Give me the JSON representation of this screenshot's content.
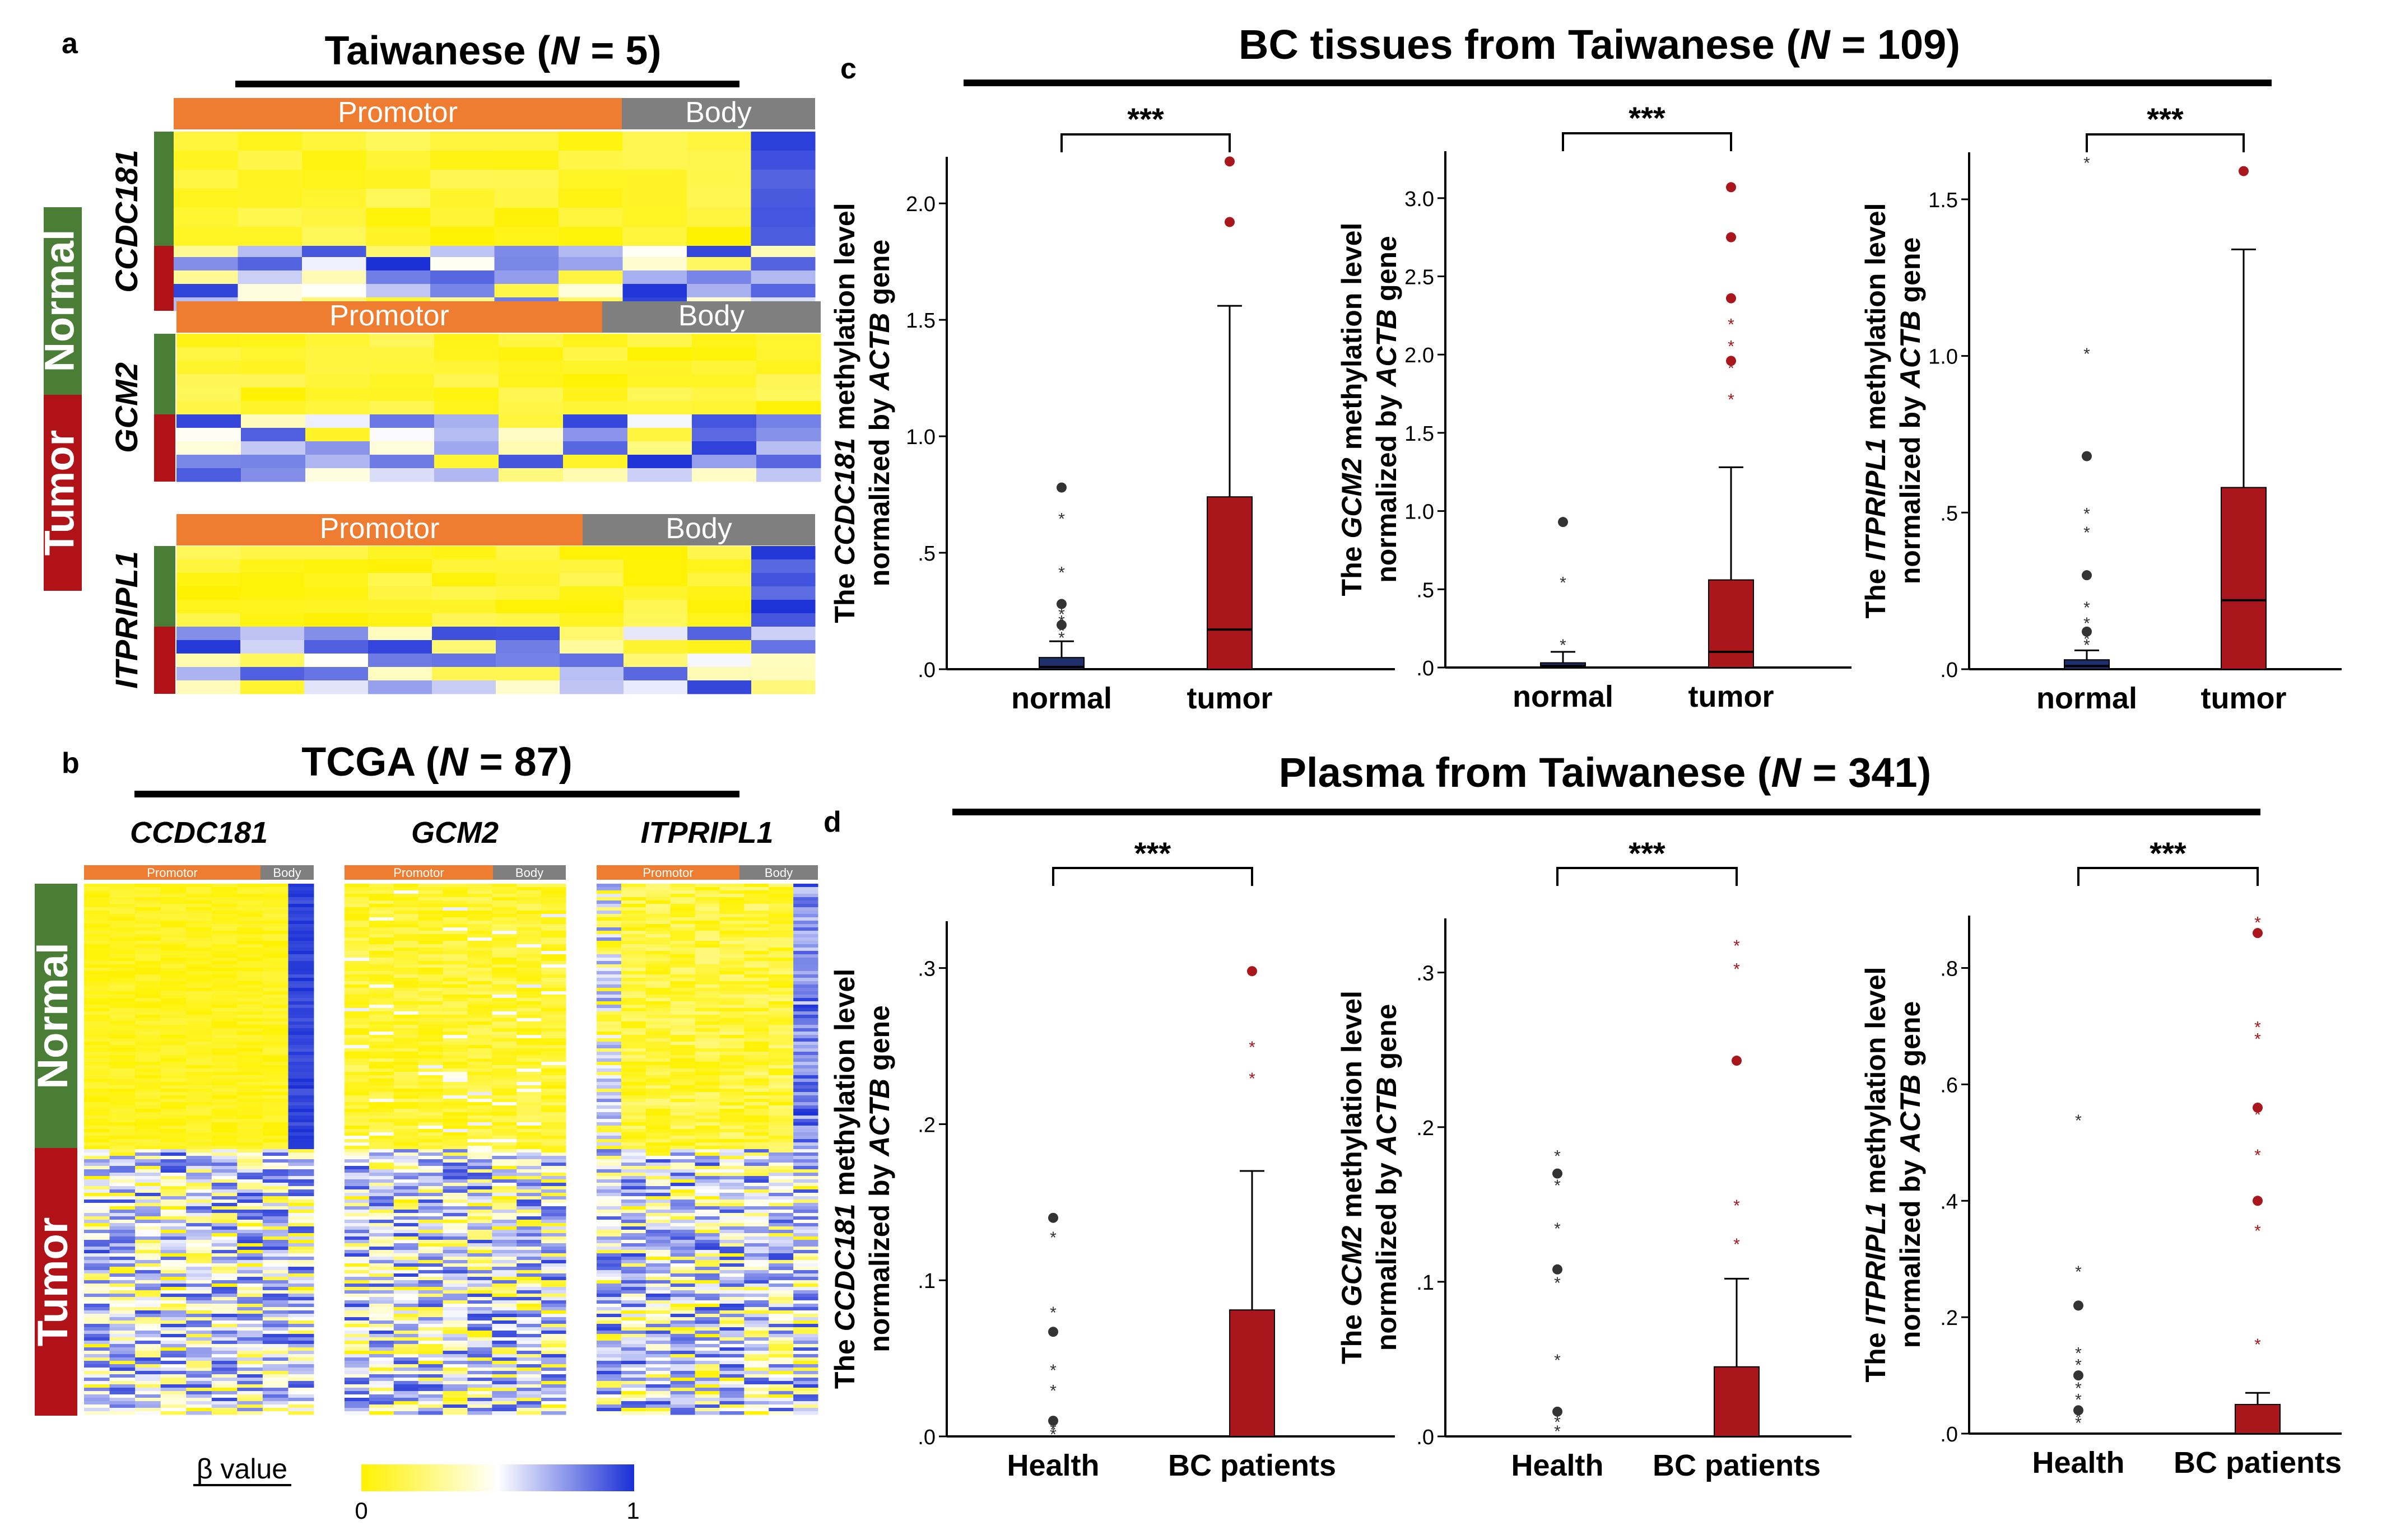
{
  "panels": {
    "a": {
      "letter": "a",
      "title_pre": "Taiwanese (",
      "title_n": "N",
      "title_post": " = 5)",
      "groups": {
        "normal": "Normal",
        "tumor": "Tumor"
      },
      "region_labels": {
        "promotor": "Promotor",
        "body": "Body"
      },
      "genes": [
        "CCDC181",
        "GCM2",
        "ITPRIPL1"
      ]
    },
    "b": {
      "letter": "b",
      "title_pre": "TCGA (",
      "title_n": "N",
      "title_post": " = 87)",
      "groups": {
        "normal": "Normal",
        "tumor": "Tumor"
      },
      "region_labels": {
        "promotor": "Promotor",
        "body": "Body"
      },
      "genes": [
        "CCDC181",
        "GCM2",
        "ITPRIPL1"
      ],
      "colorbar": {
        "label": "β value",
        "min_label": "0",
        "max_label": "1"
      }
    },
    "c": {
      "letter": "c",
      "title_pre": "BC tissues from Taiwanese (",
      "title_n": "N",
      "title_post": " = 109)"
    },
    "d": {
      "letter": "d",
      "title_pre": "Plasma from Taiwanese (",
      "title_n": "N",
      "title_post": " = 341)"
    }
  },
  "colors": {
    "orange": "#ef7d31",
    "gray": "#7f7f7f",
    "green": "#4a7d36",
    "red": "#b01218",
    "yellow": "#fff200",
    "blue": "#1a2fd6",
    "bar_red": "#a9161c",
    "normal_box": "#1f2f6b"
  },
  "chart_data": [
    {
      "type": "box",
      "panel": "c",
      "gene": "CCDC181",
      "ylabel_pre": "The ",
      "ylabel_gene": "CCDC181",
      "ylabel_post": " methylation level",
      "ylabel2_pre": "normalized by ",
      "ylabel2_gene": "ACTB",
      "ylabel2_post": " gene",
      "ylim": [
        0,
        2.2
      ],
      "yticks": [
        0,
        0.5,
        1.0,
        1.5,
        2.0
      ],
      "ytick_labels": [
        ".0",
        ".5",
        "1.0",
        "1.5",
        "2.0"
      ],
      "categories": [
        "normal",
        "tumor"
      ],
      "significance": "***",
      "boxes": [
        {
          "q1": 0,
          "median": 0.01,
          "q3": 0.05,
          "whisker_high": 0.12,
          "outliers": [
            0.14,
            0.17,
            0.19,
            0.21,
            0.24,
            0.28,
            0.42,
            0.65,
            0.78
          ]
        },
        {
          "q1": 0,
          "median": 0.17,
          "q3": 0.74,
          "whisker_high": 1.56,
          "outliers": [
            1.92,
            2.18
          ]
        }
      ]
    },
    {
      "type": "box",
      "panel": "c",
      "gene": "GCM2",
      "ylabel_pre": "The ",
      "ylabel_gene": "GCM2",
      "ylabel_post": " methylation level",
      "ylabel2_pre": "normalized by ",
      "ylabel2_gene": "ACTB",
      "ylabel2_post": " gene",
      "ylim": [
        0,
        3.3
      ],
      "yticks": [
        0,
        0.5,
        1.0,
        1.5,
        2.0,
        2.5,
        3.0
      ],
      "ytick_labels": [
        ".0",
        ".5",
        "1.0",
        "1.5",
        "2.0",
        "2.5",
        "3.0"
      ],
      "categories": [
        "normal",
        "tumor"
      ],
      "significance": "***",
      "boxes": [
        {
          "q1": 0,
          "median": 0.01,
          "q3": 0.03,
          "whisker_high": 0.1,
          "outliers": [
            0.15,
            0.55,
            0.93
          ]
        },
        {
          "q1": 0,
          "median": 0.1,
          "q3": 0.56,
          "whisker_high": 1.28,
          "outliers": [
            1.72,
            1.92,
            1.96,
            2.06,
            2.2,
            2.36,
            2.75,
            3.07
          ]
        }
      ]
    },
    {
      "type": "box",
      "panel": "c",
      "gene": "ITPRIPL1",
      "ylabel_pre": "The ",
      "ylabel_gene": "ITPRIPL1",
      "ylabel_post": " methylation level",
      "ylabel2_pre": "normalized by ",
      "ylabel2_gene": "ACTB",
      "ylabel2_post": " gene",
      "ylim": [
        0,
        1.65
      ],
      "yticks": [
        0,
        0.5,
        1.0,
        1.5
      ],
      "ytick_labels": [
        ".0",
        ".5",
        "1.0",
        "1.5"
      ],
      "categories": [
        "normal",
        "tumor"
      ],
      "significance": "***",
      "boxes": [
        {
          "q1": 0,
          "median": 0.01,
          "q3": 0.03,
          "whisker_high": 0.06,
          "outliers": [
            0.08,
            0.1,
            0.12,
            0.15,
            0.2,
            0.3,
            0.44,
            0.5,
            0.68,
            1.01,
            1.62
          ]
        },
        {
          "q1": 0,
          "median": 0.22,
          "q3": 0.58,
          "whisker_high": 1.34,
          "outliers": [
            1.59
          ]
        }
      ]
    },
    {
      "type": "bar",
      "panel": "d",
      "gene": "CCDC181",
      "ylabel_pre": "The ",
      "ylabel_gene": "CCDC181",
      "ylabel_post": " methylation level",
      "ylabel2_pre": "normalized by ",
      "ylabel2_gene": "ACTB",
      "ylabel2_post": " gene",
      "ylim": [
        0,
        0.33
      ],
      "yticks": [
        0,
        0.1,
        0.2,
        0.3
      ],
      "ytick_labels": [
        ".0",
        ".1",
        ".2",
        ".3"
      ],
      "categories": [
        "Health",
        "BC patients"
      ],
      "significance": "***",
      "boxes": [
        {
          "q1": 0,
          "median": 0,
          "q3": 0,
          "whisker_high": 0,
          "outliers": [
            0.002,
            0.005,
            0.01,
            0.03,
            0.043,
            0.067,
            0.08,
            0.128,
            0.14
          ]
        },
        {
          "q1": 0,
          "median": 0,
          "q3": 0.081,
          "whisker_high": 0.17,
          "outliers": [
            0.23,
            0.25,
            0.298
          ]
        }
      ]
    },
    {
      "type": "bar",
      "panel": "d",
      "gene": "GCM2",
      "ylabel_pre": "The ",
      "ylabel_gene": "GCM2",
      "ylabel_post": " methylation level",
      "ylabel2_pre": "normalized by ",
      "ylabel2_gene": "ACTB",
      "ylabel2_post": " gene",
      "ylim": [
        0,
        0.335
      ],
      "yticks": [
        0,
        0.1,
        0.2,
        0.3
      ],
      "ytick_labels": [
        ".0",
        ".1",
        ".2",
        ".3"
      ],
      "categories": [
        "Health",
        "BC patients"
      ],
      "significance": "***",
      "boxes": [
        {
          "q1": 0,
          "median": 0,
          "q3": 0,
          "whisker_high": 0,
          "outliers": [
            0.004,
            0.01,
            0.016,
            0.05,
            0.1,
            0.108,
            0.135,
            0.163,
            0.17,
            0.182
          ]
        },
        {
          "q1": 0,
          "median": 0,
          "q3": 0.045,
          "whisker_high": 0.102,
          "outliers": [
            0.125,
            0.15,
            0.243,
            0.303,
            0.318
          ]
        }
      ]
    },
    {
      "type": "bar",
      "panel": "d",
      "gene": "ITPRIPL1",
      "ylabel_pre": "The ",
      "ylabel_gene": "ITPRIPL1",
      "ylabel_post": " methylation level",
      "ylabel2_pre": "normalized by ",
      "ylabel2_gene": "ACTB",
      "ylabel2_post": " gene",
      "ylim": [
        0,
        0.89
      ],
      "yticks": [
        0,
        0.2,
        0.4,
        0.6,
        0.8
      ],
      "ytick_labels": [
        ".0",
        ".2",
        ".4",
        ".6",
        ".8"
      ],
      "categories": [
        "Health",
        "BC patients"
      ],
      "significance": "***",
      "boxes": [
        {
          "q1": 0,
          "median": 0,
          "q3": 0,
          "whisker_high": 0,
          "outliers": [
            0.02,
            0.03,
            0.04,
            0.06,
            0.08,
            0.1,
            0.12,
            0.14,
            0.22,
            0.28,
            0.54
          ]
        },
        {
          "q1": 0,
          "median": 0,
          "q3": 0.05,
          "whisker_high": 0.07,
          "outliers": [
            0.155,
            0.35,
            0.4,
            0.48,
            0.55,
            0.56,
            0.68,
            0.7,
            0.86,
            0.88
          ]
        }
      ]
    }
  ]
}
